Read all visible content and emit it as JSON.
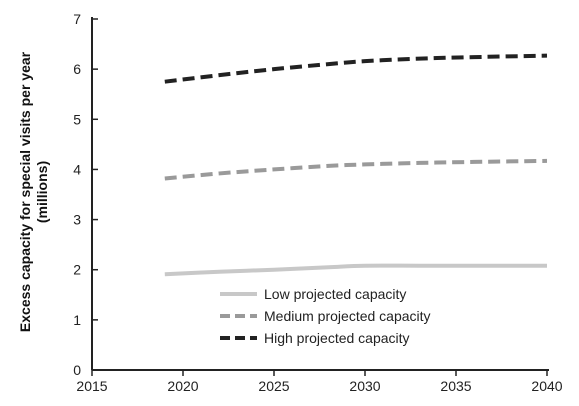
{
  "chart_data": {
    "type": "line",
    "xlabel": "",
    "ylabel_lines": [
      "Excess capacity for special visits per year",
      "(millions)"
    ],
    "xlim": [
      2015,
      2040
    ],
    "ylim": [
      0,
      7
    ],
    "x_ticks": [
      2015,
      2020,
      2025,
      2030,
      2035,
      2040
    ],
    "y_ticks": [
      0,
      1,
      2,
      3,
      4,
      5,
      6,
      7
    ],
    "grid": false,
    "legend_position": "lower-center",
    "series": [
      {
        "name": "Low projected capacity",
        "color": "#c8c8c8",
        "dash": "solid",
        "x": [
          2019,
          2022,
          2025,
          2028,
          2030,
          2033,
          2036,
          2040
        ],
        "values": [
          1.91,
          1.96,
          2.0,
          2.05,
          2.08,
          2.08,
          2.08,
          2.08
        ]
      },
      {
        "name": "Medium projected capacity",
        "color": "#9a9a9a",
        "dash": "dashed",
        "x": [
          2019,
          2022,
          2025,
          2028,
          2030,
          2033,
          2036,
          2040
        ],
        "values": [
          3.82,
          3.92,
          4.0,
          4.07,
          4.1,
          4.13,
          4.15,
          4.17
        ]
      },
      {
        "name": "High projected capacity",
        "color": "#222222",
        "dash": "dashed",
        "x": [
          2019,
          2022,
          2025,
          2028,
          2030,
          2033,
          2036,
          2040
        ],
        "values": [
          5.75,
          5.88,
          6.0,
          6.1,
          6.16,
          6.21,
          6.24,
          6.27
        ]
      }
    ]
  }
}
